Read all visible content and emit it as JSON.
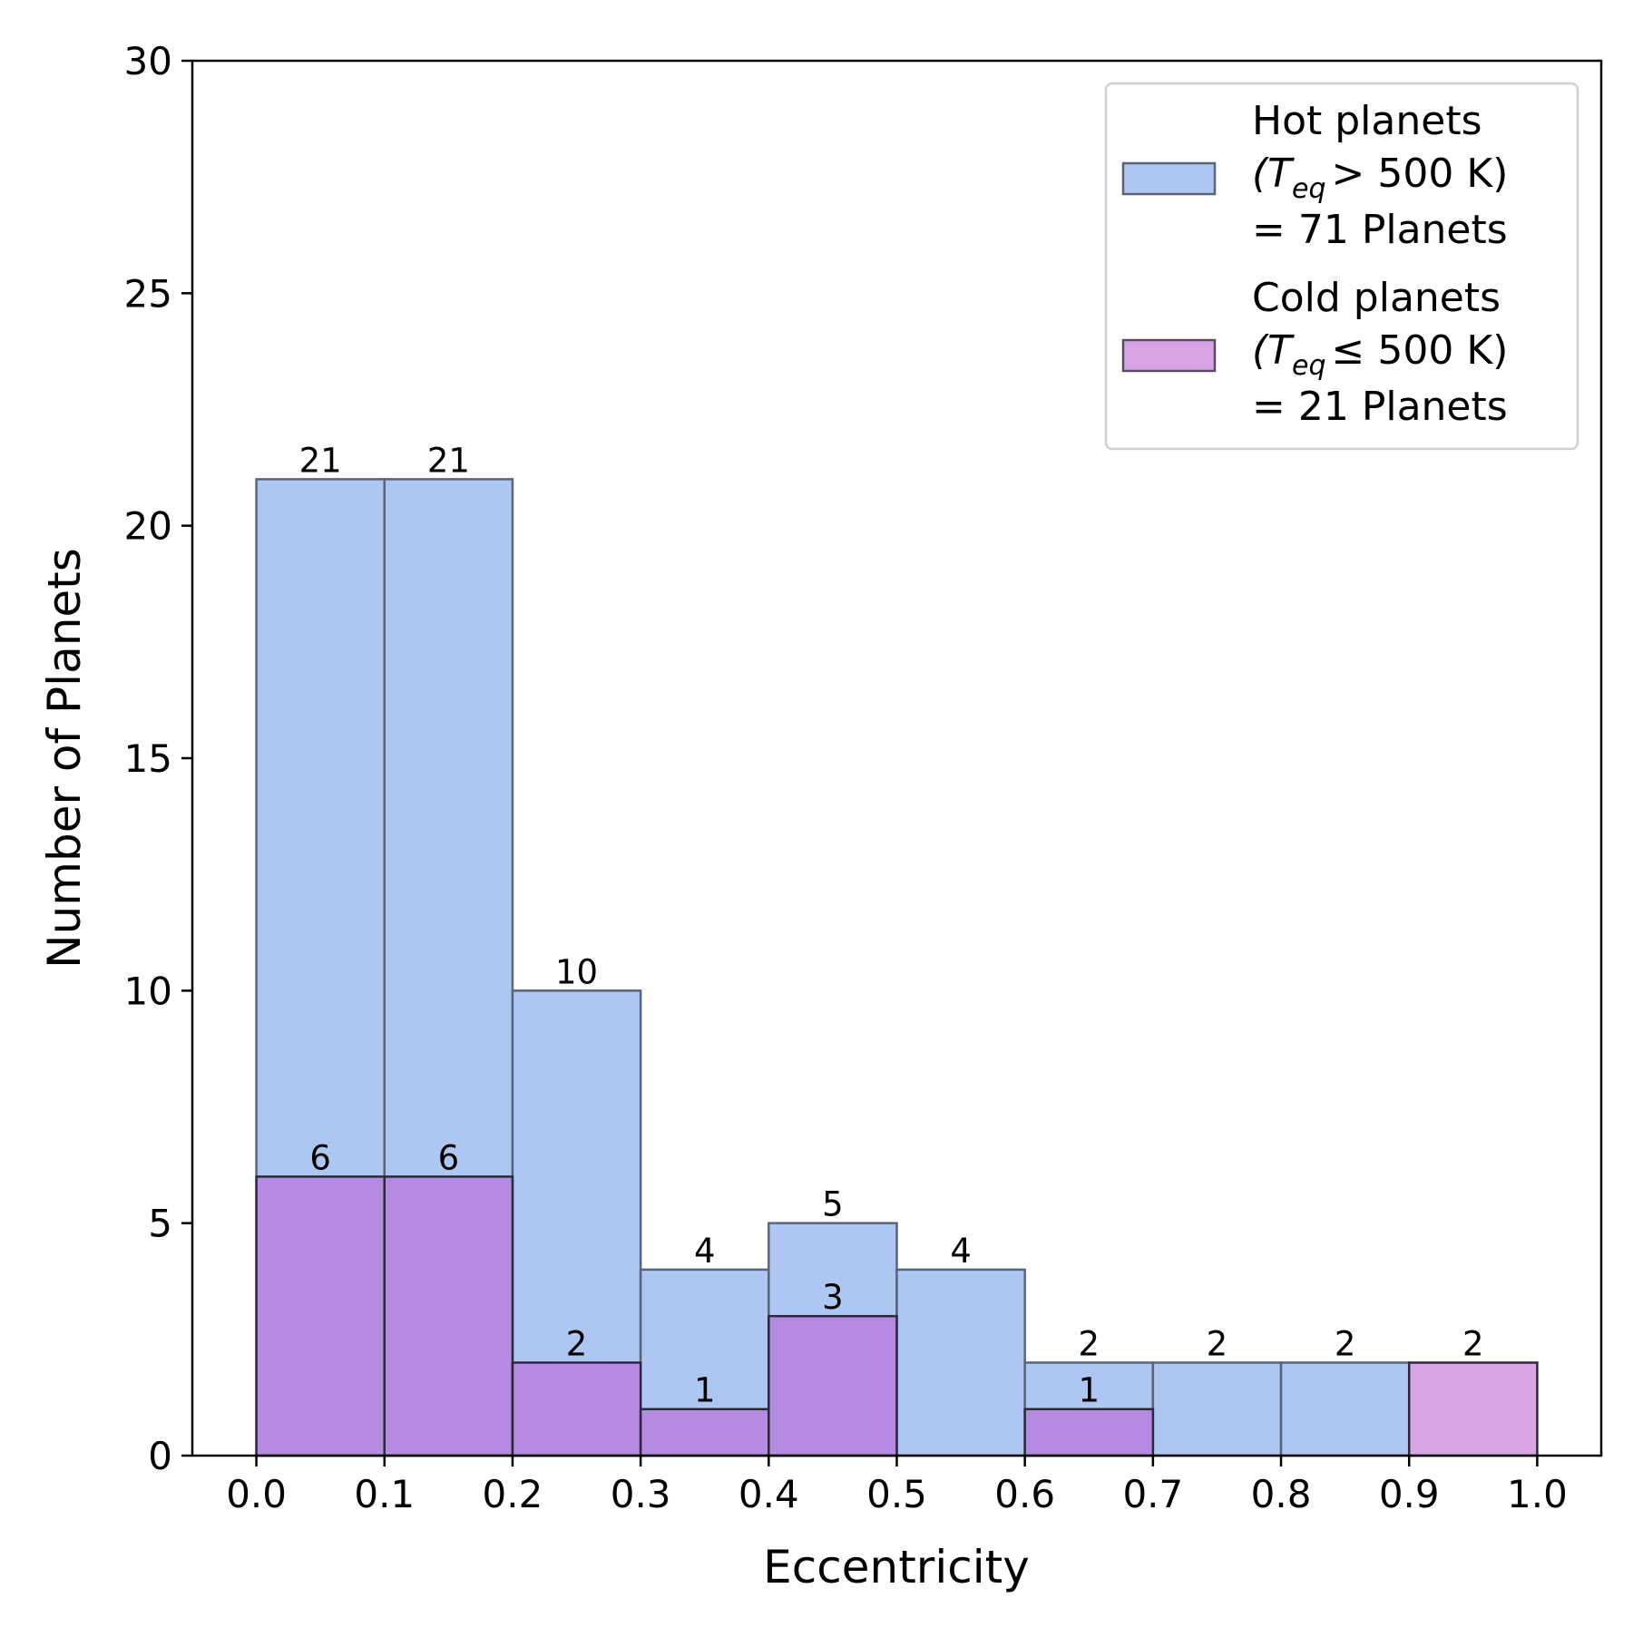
{
  "chart_data": {
    "type": "bar",
    "title": "",
    "xlabel": "Eccentricity",
    "ylabel": "Number of Planets",
    "xlim": [
      -0.05,
      1.05
    ],
    "ylim": [
      0,
      30
    ],
    "xticks": [
      0.0,
      0.1,
      0.2,
      0.3,
      0.4,
      0.5,
      0.6,
      0.7,
      0.8,
      0.9,
      1.0
    ],
    "xtick_labels": [
      "0.0",
      "0.1",
      "0.2",
      "0.3",
      "0.4",
      "0.5",
      "0.6",
      "0.7",
      "0.8",
      "0.9",
      "1.0"
    ],
    "yticks": [
      0,
      5,
      10,
      15,
      20,
      25,
      30
    ],
    "ytick_labels": [
      "0",
      "5",
      "10",
      "15",
      "20",
      "25",
      "30"
    ],
    "bin_edges": [
      0.0,
      0.1,
      0.2,
      0.3,
      0.4,
      0.5,
      0.6,
      0.7,
      0.8,
      0.9,
      1.0
    ],
    "grid": false,
    "legend_position": "top-right",
    "series": [
      {
        "name": "Hot planets",
        "legend_lines": [
          "Hot planets",
          "(T",
          "eq",
          "> 500 K)",
          "= 71 Planets"
        ],
        "color": "#aec6f2",
        "edge_color": "#5a6478",
        "values": [
          21,
          21,
          10,
          4,
          5,
          4,
          2,
          2,
          2,
          0
        ],
        "labels": [
          "21",
          "21",
          "10",
          "4",
          "5",
          "4",
          "2",
          "2",
          "2",
          ""
        ]
      },
      {
        "name": "Cold planets",
        "legend_lines": [
          "Cold planets",
          "(T",
          "eq",
          "≤ 500 K)",
          "= 21 Planets"
        ],
        "color": "#d8a4e6",
        "overlap_color": "#b48be1",
        "edge_color": "#5a4a66",
        "values": [
          6,
          6,
          2,
          1,
          3,
          0,
          1,
          0,
          0,
          2
        ],
        "labels": [
          "6",
          "6",
          "2",
          "1",
          "3",
          "",
          "1",
          "",
          "",
          "2"
        ]
      }
    ]
  }
}
